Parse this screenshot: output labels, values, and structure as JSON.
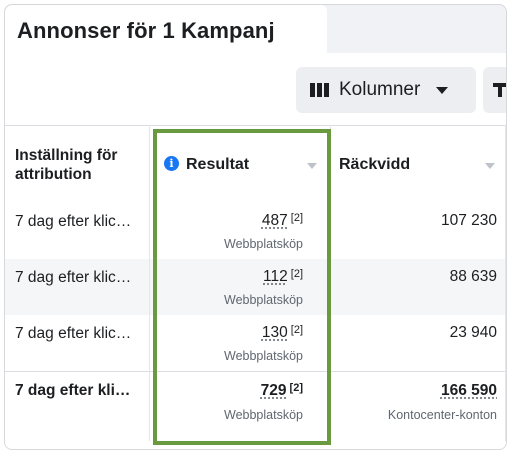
{
  "tab": {
    "title": "Annonser för 1 Kampanj"
  },
  "toolbar": {
    "columns_label": "Kolumner"
  },
  "table": {
    "headers": {
      "attribution": "Inställning för attribution",
      "results": "Resultat",
      "reach": "Räckvidd"
    },
    "rows": [
      {
        "setting": "7 dag efter klic…",
        "result": "487",
        "ref": "[2]",
        "result_type": "Webbplatsköp",
        "reach": "107 230"
      },
      {
        "setting": "7 dag efter klic…",
        "result": "112",
        "ref": "[2]",
        "result_type": "Webbplatsköp",
        "reach": "88 639"
      },
      {
        "setting": "7 dag efter klic…",
        "result": "130",
        "ref": "[2]",
        "result_type": "Webbplatsköp",
        "reach": "23 940"
      }
    ],
    "total": {
      "setting": "7 dag efter kli…",
      "result": "729",
      "ref": "[2]",
      "result_type": "Webbplatsköp",
      "reach": "166 590",
      "reach_type": "Kontocenter-konton"
    }
  },
  "colors": {
    "highlight": "#6a9a3f",
    "info": "#1877f2"
  },
  "icons": {
    "columns": "columns-icon",
    "caret": "caret-down-icon",
    "info": "info-icon",
    "breakdown": "breakdown-icon"
  }
}
